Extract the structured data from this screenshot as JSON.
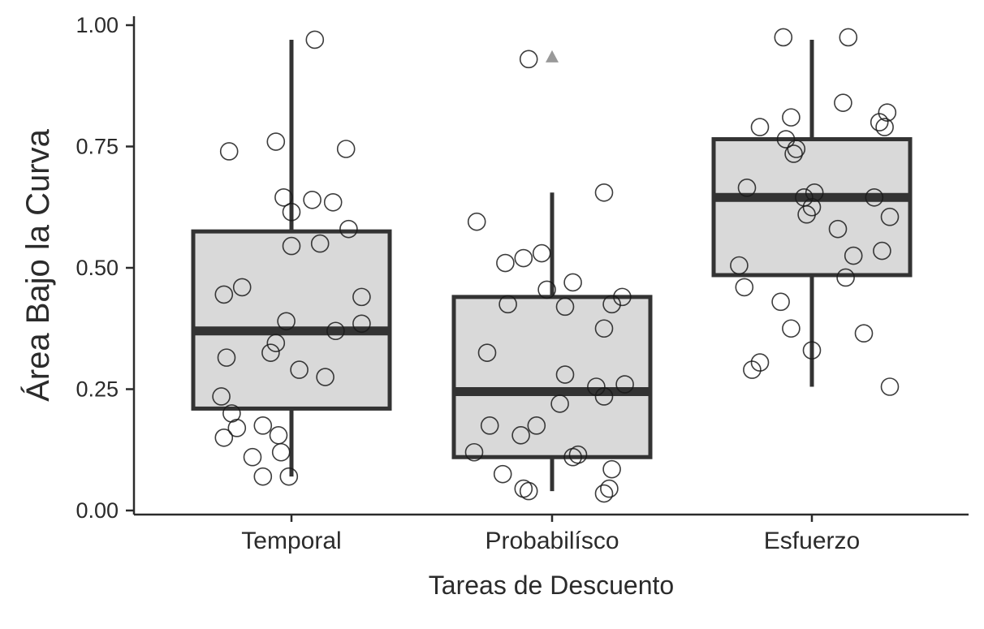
{
  "chart_data": {
    "type": "box",
    "xlabel": "Tareas de Descuento",
    "ylabel": "Área Bajo la Curva",
    "ylim": [
      0,
      1
    ],
    "y_ticks": [
      "0.00",
      "0.25",
      "0.50",
      "0.75",
      "1.00"
    ],
    "categories": [
      "Temporal",
      "Probabilísco",
      "Esfuerzo"
    ],
    "colors": {
      "box_fill": "#d9d9d9",
      "box_line": "#333333",
      "point_stroke": "#1a1a1a",
      "mean_marker": "#999999"
    },
    "boxes": [
      {
        "category": "Temporal",
        "whisker_low": 0.07,
        "q1": 0.21,
        "median": 0.37,
        "q3": 0.575,
        "whisker_high": 0.97,
        "points": [
          {
            "x": -0.24,
            "y": 0.74
          },
          {
            "x": -0.06,
            "y": 0.76
          },
          {
            "x": 0.09,
            "y": 0.97
          },
          {
            "x": 0.21,
            "y": 0.745
          },
          {
            "x": -0.03,
            "y": 0.645
          },
          {
            "x": 0.08,
            "y": 0.64
          },
          {
            "x": 0.16,
            "y": 0.635
          },
          {
            "x": 0.0,
            "y": 0.615
          },
          {
            "x": 0.22,
            "y": 0.58
          },
          {
            "x": 0.0,
            "y": 0.545
          },
          {
            "x": 0.11,
            "y": 0.55
          },
          {
            "x": -0.19,
            "y": 0.46
          },
          {
            "x": -0.26,
            "y": 0.445
          },
          {
            "x": 0.27,
            "y": 0.44
          },
          {
            "x": -0.02,
            "y": 0.39
          },
          {
            "x": 0.27,
            "y": 0.385
          },
          {
            "x": 0.17,
            "y": 0.37
          },
          {
            "x": -0.06,
            "y": 0.345
          },
          {
            "x": -0.08,
            "y": 0.325
          },
          {
            "x": -0.25,
            "y": 0.315
          },
          {
            "x": 0.03,
            "y": 0.29
          },
          {
            "x": 0.13,
            "y": 0.275
          },
          {
            "x": -0.27,
            "y": 0.235
          },
          {
            "x": -0.23,
            "y": 0.2
          },
          {
            "x": -0.11,
            "y": 0.175
          },
          {
            "x": -0.21,
            "y": 0.17
          },
          {
            "x": -0.05,
            "y": 0.155
          },
          {
            "x": -0.26,
            "y": 0.15
          },
          {
            "x": -0.04,
            "y": 0.12
          },
          {
            "x": -0.15,
            "y": 0.11
          },
          {
            "x": -0.11,
            "y": 0.07
          },
          {
            "x": -0.01,
            "y": 0.07
          }
        ],
        "mean": null
      },
      {
        "category": "Probabilísco",
        "whisker_low": 0.04,
        "q1": 0.11,
        "median": 0.245,
        "q3": 0.44,
        "whisker_high": 0.655,
        "points": [
          {
            "x": -0.09,
            "y": 0.93
          },
          {
            "x": 0.2,
            "y": 0.655
          },
          {
            "x": -0.29,
            "y": 0.595
          },
          {
            "x": -0.18,
            "y": 0.51
          },
          {
            "x": -0.11,
            "y": 0.52
          },
          {
            "x": -0.04,
            "y": 0.53
          },
          {
            "x": -0.02,
            "y": 0.455
          },
          {
            "x": 0.08,
            "y": 0.47
          },
          {
            "x": 0.27,
            "y": 0.44
          },
          {
            "x": -0.17,
            "y": 0.425
          },
          {
            "x": 0.05,
            "y": 0.42
          },
          {
            "x": 0.23,
            "y": 0.425
          },
          {
            "x": 0.2,
            "y": 0.375
          },
          {
            "x": -0.25,
            "y": 0.325
          },
          {
            "x": 0.05,
            "y": 0.28
          },
          {
            "x": 0.17,
            "y": 0.255
          },
          {
            "x": 0.28,
            "y": 0.26
          },
          {
            "x": 0.03,
            "y": 0.22
          },
          {
            "x": 0.2,
            "y": 0.235
          },
          {
            "x": -0.24,
            "y": 0.175
          },
          {
            "x": -0.06,
            "y": 0.175
          },
          {
            "x": -0.12,
            "y": 0.155
          },
          {
            "x": -0.3,
            "y": 0.12
          },
          {
            "x": 0.1,
            "y": 0.115
          },
          {
            "x": 0.08,
            "y": 0.11
          },
          {
            "x": -0.19,
            "y": 0.075
          },
          {
            "x": 0.23,
            "y": 0.085
          },
          {
            "x": 0.22,
            "y": 0.045
          },
          {
            "x": -0.11,
            "y": 0.045
          },
          {
            "x": -0.09,
            "y": 0.04
          },
          {
            "x": 0.2,
            "y": 0.035
          }
        ],
        "mean": 0.935
      },
      {
        "category": "Esfuerzo",
        "whisker_low": 0.255,
        "q1": 0.485,
        "median": 0.645,
        "q3": 0.765,
        "whisker_high": 0.97,
        "points": [
          {
            "x": -0.11,
            "y": 0.975
          },
          {
            "x": 0.14,
            "y": 0.975
          },
          {
            "x": 0.12,
            "y": 0.84
          },
          {
            "x": 0.29,
            "y": 0.82
          },
          {
            "x": -0.08,
            "y": 0.81
          },
          {
            "x": -0.2,
            "y": 0.79
          },
          {
            "x": 0.26,
            "y": 0.8
          },
          {
            "x": 0.28,
            "y": 0.79
          },
          {
            "x": -0.1,
            "y": 0.765
          },
          {
            "x": -0.07,
            "y": 0.735
          },
          {
            "x": -0.06,
            "y": 0.745
          },
          {
            "x": -0.25,
            "y": 0.665
          },
          {
            "x": 0.24,
            "y": 0.645
          },
          {
            "x": 0.01,
            "y": 0.655
          },
          {
            "x": -0.03,
            "y": 0.645
          },
          {
            "x": 0.0,
            "y": 0.625
          },
          {
            "x": -0.02,
            "y": 0.61
          },
          {
            "x": 0.3,
            "y": 0.605
          },
          {
            "x": 0.1,
            "y": 0.58
          },
          {
            "x": 0.27,
            "y": 0.535
          },
          {
            "x": 0.16,
            "y": 0.525
          },
          {
            "x": -0.28,
            "y": 0.505
          },
          {
            "x": 0.13,
            "y": 0.48
          },
          {
            "x": -0.26,
            "y": 0.46
          },
          {
            "x": -0.12,
            "y": 0.43
          },
          {
            "x": -0.08,
            "y": 0.375
          },
          {
            "x": 0.2,
            "y": 0.365
          },
          {
            "x": 0.0,
            "y": 0.33
          },
          {
            "x": -0.2,
            "y": 0.305
          },
          {
            "x": -0.23,
            "y": 0.29
          },
          {
            "x": 0.3,
            "y": 0.255
          }
        ],
        "mean": null
      }
    ],
    "grid": false,
    "legend": "none"
  }
}
